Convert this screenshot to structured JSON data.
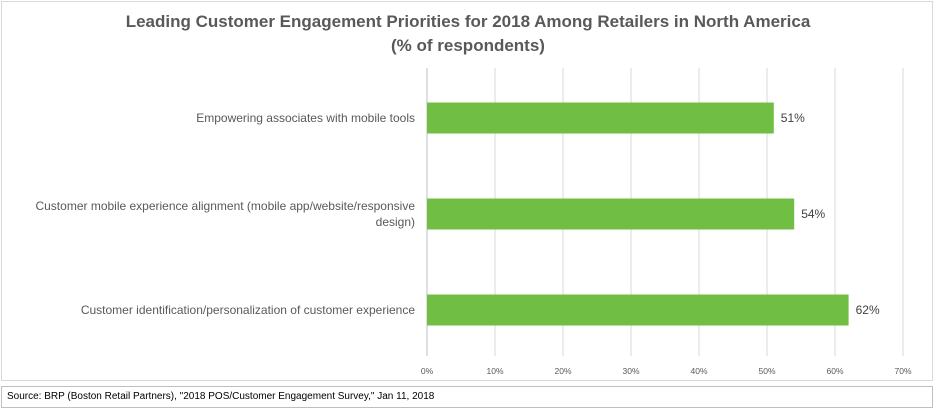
{
  "chart_data": {
    "type": "bar",
    "orientation": "horizontal",
    "title": "Leading Customer Engagement Priorities for 2018 Among Retailers in North America",
    "subtitle": "(% of respondents)",
    "categories": [
      "Empowering associates with mobile tools",
      "Customer mobile experience alignment (mobile app/website/responsive design)",
      "Customer identification/personalization of customer experience"
    ],
    "category_lines": [
      [
        "Empowering associates with mobile tools"
      ],
      [
        "Customer mobile experience alignment (mobile app/website/responsive",
        "design)"
      ],
      [
        "Customer identification/personalization of customer experience"
      ]
    ],
    "values": [
      51,
      54,
      62
    ],
    "data_labels": [
      "51%",
      "54%",
      "62%"
    ],
    "xlim": [
      0,
      70
    ],
    "x_ticks": [
      "0%",
      "10%",
      "20%",
      "30%",
      "40%",
      "50%",
      "60%",
      "70%"
    ],
    "grid": true,
    "legend": "none",
    "bar_color": "#70BF44"
  },
  "source": "Source: BRP (Boston Retail Partners), \"2018 POS/Customer Engagement Survey,\" Jan 11, 2018"
}
